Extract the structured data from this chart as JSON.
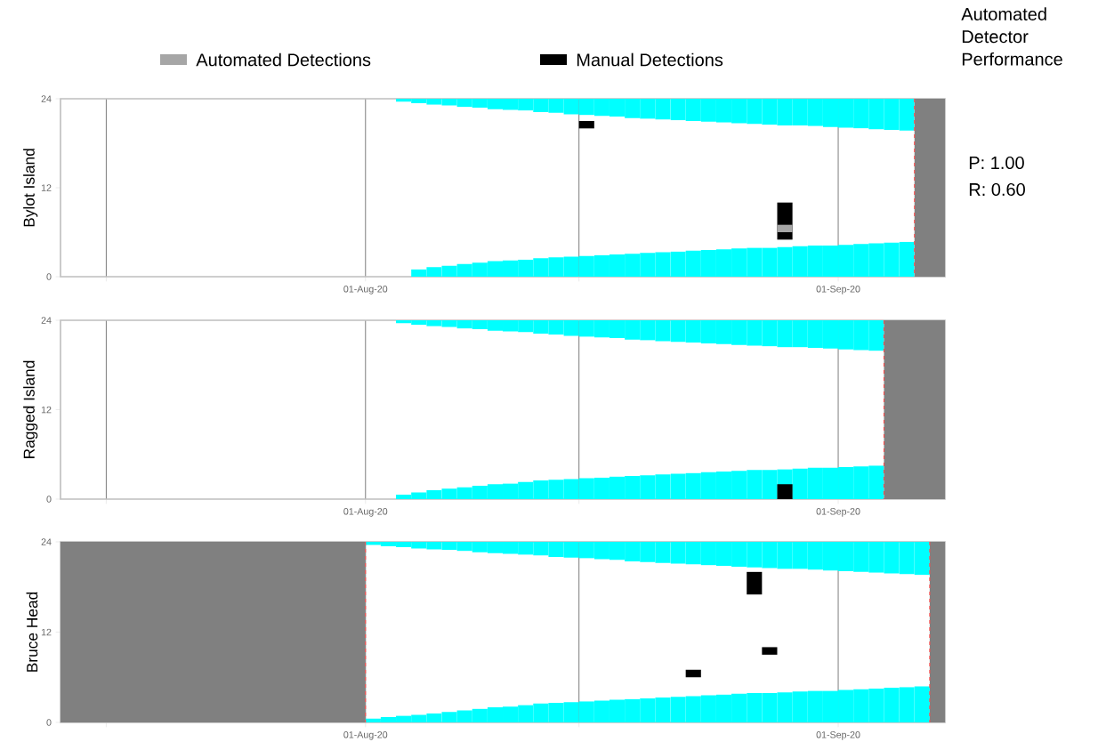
{
  "chart_data": [
    {
      "type": "bar",
      "ylabel": "Bylot Island",
      "legend": "top",
      "grid": "x",
      "annotations": [
        "Automated Detector Performance",
        "P: 1.00",
        "R: 0.60"
      ],
      "xlim": [
        "2020-07-12",
        "2020-09-08"
      ],
      "xticks": [
        {
          "value": "2020-07-15",
          "label": null
        },
        {
          "value": "2020-08-01",
          "label": "01-Aug-20"
        },
        {
          "value": "2020-08-15",
          "label": null
        },
        {
          "value": "2020-09-01",
          "label": "01-Sep-20"
        }
      ],
      "ylim": [
        0,
        24
      ],
      "yticks": [
        0,
        12,
        24
      ],
      "bands": [
        {
          "axis": "x",
          "from": "2020-09-06",
          "to": "2020-09-08",
          "color": "#808080"
        }
      ],
      "ref_lines": [
        {
          "axis": "x",
          "value": "2020-09-06",
          "color": "#ff4c4c",
          "line_style": "dashed"
        }
      ],
      "series": [
        {
          "color": "#00ffff",
          "x": [
            "2020-08-03",
            "2020-08-04",
            "2020-08-05",
            "2020-08-06",
            "2020-08-07",
            "2020-08-08",
            "2020-08-09",
            "2020-08-10",
            "2020-08-11",
            "2020-08-12",
            "2020-08-13",
            "2020-08-14",
            "2020-08-15",
            "2020-08-16",
            "2020-08-17",
            "2020-08-18",
            "2020-08-19",
            "2020-08-20",
            "2020-08-21",
            "2020-08-22",
            "2020-08-23",
            "2020-08-24",
            "2020-08-25",
            "2020-08-26",
            "2020-08-27",
            "2020-08-28",
            "2020-08-29",
            "2020-08-30",
            "2020-08-31",
            "2020-09-01",
            "2020-09-02",
            "2020-09-03",
            "2020-09-04",
            "2020-09-05"
          ],
          "base": [
            23.6,
            23.4,
            23.2,
            23.1,
            22.9,
            22.8,
            22.6,
            22.5,
            22.4,
            22.2,
            22.1,
            21.9,
            21.8,
            21.7,
            21.6,
            21.4,
            21.3,
            21.2,
            21.1,
            21.0,
            20.9,
            20.8,
            20.7,
            20.6,
            20.5,
            20.4,
            20.4,
            20.3,
            20.2,
            20.1,
            20.0,
            19.9,
            19.8,
            19.7
          ],
          "values": [
            0.4,
            0.6,
            0.8,
            0.9,
            1.1,
            1.2,
            1.4,
            1.5,
            1.6,
            1.8,
            1.9,
            2.1,
            2.2,
            2.3,
            2.4,
            2.6,
            2.7,
            2.8,
            2.9,
            3.0,
            3.1,
            3.2,
            3.3,
            3.4,
            3.5,
            3.6,
            3.6,
            3.7,
            3.8,
            3.9,
            4.0,
            4.1,
            4.2,
            4.3
          ]
        },
        {
          "color": "#00ffff",
          "x": [
            "2020-08-04",
            "2020-08-05",
            "2020-08-06",
            "2020-08-07",
            "2020-08-08",
            "2020-08-09",
            "2020-08-10",
            "2020-08-11",
            "2020-08-12",
            "2020-08-13",
            "2020-08-14",
            "2020-08-15",
            "2020-08-16",
            "2020-08-17",
            "2020-08-18",
            "2020-08-19",
            "2020-08-20",
            "2020-08-21",
            "2020-08-22",
            "2020-08-23",
            "2020-08-24",
            "2020-08-25",
            "2020-08-26",
            "2020-08-27",
            "2020-08-28",
            "2020-08-29",
            "2020-08-30",
            "2020-08-31",
            "2020-09-01",
            "2020-09-02",
            "2020-09-03",
            "2020-09-04",
            "2020-09-05"
          ],
          "base": [
            0,
            0,
            0,
            0,
            0,
            0,
            0,
            0,
            0,
            0,
            0,
            0,
            0,
            0,
            0,
            0,
            0,
            0,
            0,
            0,
            0,
            0,
            0,
            0,
            0,
            0,
            0,
            0,
            0,
            0,
            0,
            0,
            0
          ],
          "values": [
            1.0,
            1.3,
            1.5,
            1.7,
            1.9,
            2.1,
            2.2,
            2.3,
            2.5,
            2.6,
            2.7,
            2.8,
            2.9,
            3.0,
            3.1,
            3.2,
            3.3,
            3.4,
            3.5,
            3.6,
            3.7,
            3.8,
            3.9,
            3.9,
            4.0,
            4.1,
            4.2,
            4.2,
            4.3,
            4.4,
            4.5,
            4.6,
            4.7
          ]
        },
        {
          "name": "Automated Detections",
          "color": "#a6a6a6",
          "x": [
            "2020-08-28"
          ],
          "base": [
            6
          ],
          "values": [
            1
          ]
        },
        {
          "name": "Manual Detections",
          "color": "#000000",
          "x": [
            "2020-08-15",
            "2020-08-28"
          ],
          "base": [
            20,
            5
          ],
          "values": [
            1,
            5
          ]
        }
      ]
    },
    {
      "type": "bar",
      "ylabel": "Ragged Island",
      "grid": "x",
      "xlim": [
        "2020-07-12",
        "2020-09-08"
      ],
      "xticks": [
        {
          "value": "2020-07-15",
          "label": null
        },
        {
          "value": "2020-08-01",
          "label": "01-Aug-20"
        },
        {
          "value": "2020-08-15",
          "label": null
        },
        {
          "value": "2020-09-01",
          "label": "01-Sep-20"
        }
      ],
      "ylim": [
        0,
        24
      ],
      "yticks": [
        0,
        12,
        24
      ],
      "bands": [
        {
          "axis": "x",
          "from": "2020-09-04",
          "to": "2020-09-08",
          "color": "#808080"
        }
      ],
      "ref_lines": [
        {
          "axis": "x",
          "value": "2020-09-04",
          "color": "#ff4c4c",
          "line_style": "dashed"
        }
      ],
      "series": [
        {
          "color": "#00ffff",
          "x": [
            "2020-08-03",
            "2020-08-04",
            "2020-08-05",
            "2020-08-06",
            "2020-08-07",
            "2020-08-08",
            "2020-08-09",
            "2020-08-10",
            "2020-08-11",
            "2020-08-12",
            "2020-08-13",
            "2020-08-14",
            "2020-08-15",
            "2020-08-16",
            "2020-08-17",
            "2020-08-18",
            "2020-08-19",
            "2020-08-20",
            "2020-08-21",
            "2020-08-22",
            "2020-08-23",
            "2020-08-24",
            "2020-08-25",
            "2020-08-26",
            "2020-08-27",
            "2020-08-28",
            "2020-08-29",
            "2020-08-30",
            "2020-08-31",
            "2020-09-01",
            "2020-09-02",
            "2020-09-03"
          ],
          "base": [
            23.6,
            23.4,
            23.2,
            23.1,
            22.9,
            22.8,
            22.6,
            22.5,
            22.4,
            22.2,
            22.1,
            21.9,
            21.8,
            21.7,
            21.6,
            21.4,
            21.3,
            21.2,
            21.1,
            21.0,
            20.9,
            20.8,
            20.7,
            20.6,
            20.5,
            20.4,
            20.4,
            20.3,
            20.2,
            20.1,
            20.0,
            19.9
          ],
          "values": [
            0.4,
            0.6,
            0.8,
            0.9,
            1.1,
            1.2,
            1.4,
            1.5,
            1.6,
            1.8,
            1.9,
            2.1,
            2.2,
            2.3,
            2.4,
            2.6,
            2.7,
            2.8,
            2.9,
            3.0,
            3.1,
            3.2,
            3.3,
            3.4,
            3.5,
            3.6,
            3.6,
            3.7,
            3.8,
            3.9,
            4.0,
            4.1
          ]
        },
        {
          "color": "#00ffff",
          "x": [
            "2020-08-03",
            "2020-08-04",
            "2020-08-05",
            "2020-08-06",
            "2020-08-07",
            "2020-08-08",
            "2020-08-09",
            "2020-08-10",
            "2020-08-11",
            "2020-08-12",
            "2020-08-13",
            "2020-08-14",
            "2020-08-15",
            "2020-08-16",
            "2020-08-17",
            "2020-08-18",
            "2020-08-19",
            "2020-08-20",
            "2020-08-21",
            "2020-08-22",
            "2020-08-23",
            "2020-08-24",
            "2020-08-25",
            "2020-08-26",
            "2020-08-27",
            "2020-08-28",
            "2020-08-29",
            "2020-08-30",
            "2020-08-31",
            "2020-09-01",
            "2020-09-02",
            "2020-09-03"
          ],
          "base": [
            0,
            0,
            0,
            0,
            0,
            0,
            0,
            0,
            0,
            0,
            0,
            0,
            0,
            0,
            0,
            0,
            0,
            0,
            0,
            0,
            0,
            0,
            0,
            0,
            0,
            0,
            0,
            0,
            0,
            0,
            0,
            0
          ],
          "values": [
            0.6,
            0.9,
            1.2,
            1.4,
            1.6,
            1.8,
            2.0,
            2.1,
            2.3,
            2.5,
            2.6,
            2.7,
            2.8,
            2.9,
            3.0,
            3.1,
            3.2,
            3.3,
            3.4,
            3.5,
            3.6,
            3.7,
            3.8,
            3.9,
            3.9,
            4.0,
            4.1,
            4.2,
            4.2,
            4.3,
            4.4,
            4.5
          ]
        },
        {
          "color": "#000000",
          "x": [
            "2020-08-28"
          ],
          "base": [
            0
          ],
          "values": [
            2
          ]
        }
      ]
    },
    {
      "type": "bar",
      "ylabel": "Bruce Head",
      "grid": "x",
      "xlim": [
        "2020-07-12",
        "2020-09-08"
      ],
      "xticks": [
        {
          "value": "2020-07-15",
          "label": null
        },
        {
          "value": "2020-08-01",
          "label": "01-Aug-20"
        },
        {
          "value": "2020-08-15",
          "label": null
        },
        {
          "value": "2020-09-01",
          "label": "01-Sep-20"
        }
      ],
      "ylim": [
        0,
        24
      ],
      "yticks": [
        0,
        12,
        24
      ],
      "bands": [
        {
          "axis": "x",
          "from": "2020-07-12",
          "to": "2020-08-01",
          "color": "#808080"
        },
        {
          "axis": "x",
          "from": "2020-09-07",
          "to": "2020-09-08",
          "color": "#808080"
        }
      ],
      "ref_lines": [
        {
          "axis": "x",
          "value": "2020-08-01",
          "color": "#ff4c4c",
          "line_style": "dashed"
        },
        {
          "axis": "x",
          "value": "2020-09-07",
          "color": "#ff4c4c",
          "line_style": "dashed"
        }
      ],
      "series": [
        {
          "color": "#00ffff",
          "x": [
            "2020-08-01",
            "2020-08-02",
            "2020-08-03",
            "2020-08-04",
            "2020-08-05",
            "2020-08-06",
            "2020-08-07",
            "2020-08-08",
            "2020-08-09",
            "2020-08-10",
            "2020-08-11",
            "2020-08-12",
            "2020-08-13",
            "2020-08-14",
            "2020-08-15",
            "2020-08-16",
            "2020-08-17",
            "2020-08-18",
            "2020-08-19",
            "2020-08-20",
            "2020-08-21",
            "2020-08-22",
            "2020-08-23",
            "2020-08-24",
            "2020-08-25",
            "2020-08-26",
            "2020-08-27",
            "2020-08-28",
            "2020-08-29",
            "2020-08-30",
            "2020-08-31",
            "2020-09-01",
            "2020-09-02",
            "2020-09-03",
            "2020-09-04",
            "2020-09-05",
            "2020-09-06"
          ],
          "base": [
            23.6,
            23.4,
            23.3,
            23.1,
            23.0,
            22.9,
            22.8,
            22.6,
            22.5,
            22.4,
            22.3,
            22.2,
            22.0,
            21.9,
            21.8,
            21.7,
            21.6,
            21.4,
            21.3,
            21.2,
            21.1,
            21.0,
            20.9,
            20.8,
            20.7,
            20.6,
            20.5,
            20.4,
            20.4,
            20.3,
            20.2,
            20.1,
            20.0,
            19.9,
            19.8,
            19.7,
            19.6
          ],
          "values": [
            0.4,
            0.6,
            0.7,
            0.9,
            1.0,
            1.1,
            1.2,
            1.4,
            1.5,
            1.6,
            1.7,
            1.8,
            2.0,
            2.1,
            2.2,
            2.3,
            2.4,
            2.6,
            2.7,
            2.8,
            2.9,
            3.0,
            3.1,
            3.2,
            3.3,
            3.4,
            3.5,
            3.6,
            3.6,
            3.7,
            3.8,
            3.9,
            4.0,
            4.1,
            4.2,
            4.3,
            4.4
          ]
        },
        {
          "color": "#00ffff",
          "x": [
            "2020-08-01",
            "2020-08-02",
            "2020-08-03",
            "2020-08-04",
            "2020-08-05",
            "2020-08-06",
            "2020-08-07",
            "2020-08-08",
            "2020-08-09",
            "2020-08-10",
            "2020-08-11",
            "2020-08-12",
            "2020-08-13",
            "2020-08-14",
            "2020-08-15",
            "2020-08-16",
            "2020-08-17",
            "2020-08-18",
            "2020-08-19",
            "2020-08-20",
            "2020-08-21",
            "2020-08-22",
            "2020-08-23",
            "2020-08-24",
            "2020-08-25",
            "2020-08-26",
            "2020-08-27",
            "2020-08-28",
            "2020-08-29",
            "2020-08-30",
            "2020-08-31",
            "2020-09-01",
            "2020-09-02",
            "2020-09-03",
            "2020-09-04",
            "2020-09-05",
            "2020-09-06"
          ],
          "base": [
            0,
            0,
            0,
            0,
            0,
            0,
            0,
            0,
            0,
            0,
            0,
            0,
            0,
            0,
            0,
            0,
            0,
            0,
            0,
            0,
            0,
            0,
            0,
            0,
            0,
            0,
            0,
            0,
            0,
            0,
            0,
            0,
            0,
            0,
            0,
            0,
            0
          ],
          "values": [
            0.5,
            0.7,
            0.9,
            1.0,
            1.2,
            1.4,
            1.6,
            1.8,
            2.0,
            2.1,
            2.3,
            2.5,
            2.6,
            2.7,
            2.8,
            2.9,
            3.0,
            3.1,
            3.2,
            3.3,
            3.4,
            3.5,
            3.6,
            3.7,
            3.8,
            3.9,
            3.9,
            4.0,
            4.1,
            4.2,
            4.2,
            4.3,
            4.4,
            4.5,
            4.6,
            4.7,
            4.8
          ]
        },
        {
          "color": "#000000",
          "x": [
            "2020-08-22",
            "2020-08-26",
            "2020-08-27"
          ],
          "base": [
            6,
            17,
            9
          ],
          "values": [
            1,
            3,
            1
          ]
        }
      ]
    }
  ]
}
